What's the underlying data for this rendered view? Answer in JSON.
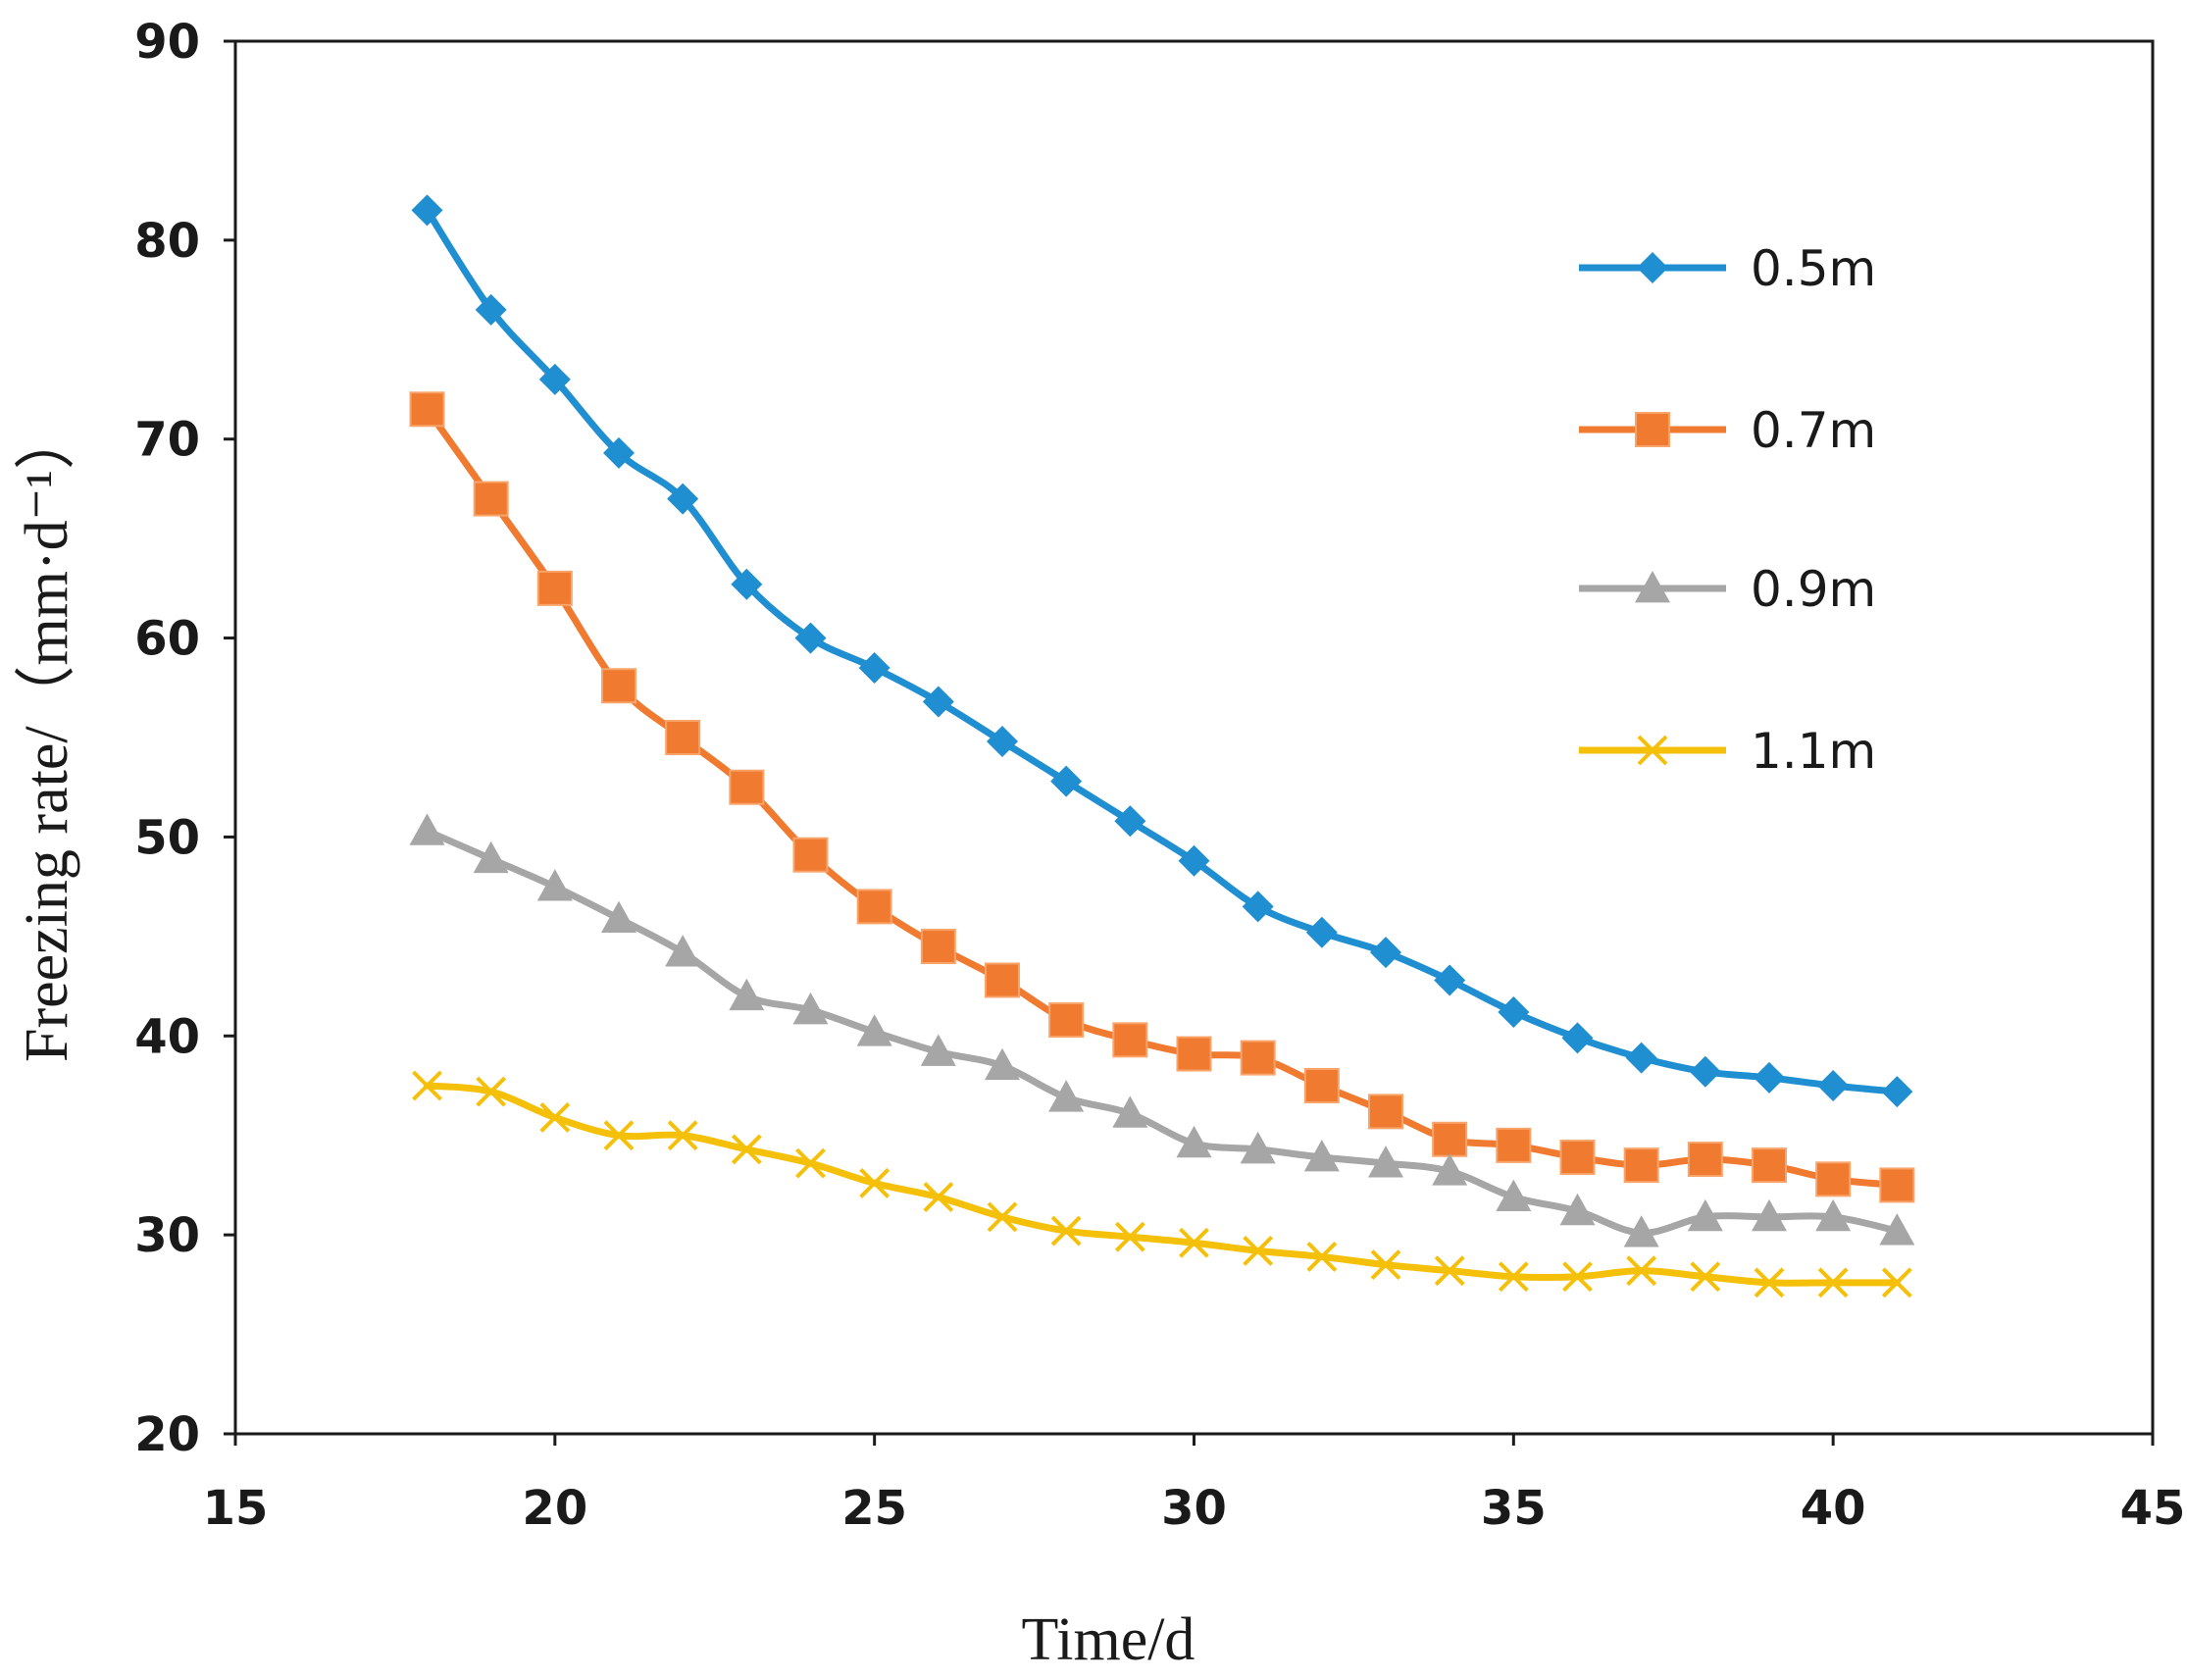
{
  "chart_data": {
    "type": "line",
    "title": "",
    "xlabel": "Time/d",
    "ylabel": "Freezing rate/（mm·d⁻¹）",
    "xlim": [
      15,
      45
    ],
    "ylim": [
      20,
      90
    ],
    "xticks": [
      15,
      20,
      25,
      30,
      35,
      40,
      45
    ],
    "yticks": [
      20,
      30,
      40,
      50,
      60,
      70,
      80,
      90
    ],
    "grid": false,
    "legend_position": "right",
    "x": [
      18,
      19,
      20,
      21,
      22,
      23,
      24,
      25,
      26,
      27,
      28,
      29,
      30,
      31,
      32,
      33,
      34,
      35,
      36,
      37,
      38,
      39,
      40,
      41
    ],
    "series": [
      {
        "name": "0.5m",
        "color": "#1f8fd1",
        "marker": "diamond",
        "values": [
          81.5,
          76.5,
          73,
          69.3,
          67,
          62.7,
          60,
          58.5,
          56.8,
          54.8,
          52.8,
          50.8,
          48.8,
          46.5,
          45.2,
          44.2,
          42.8,
          41.2,
          39.9,
          38.9,
          38.2,
          37.9,
          37.5,
          37.2
        ]
      },
      {
        "name": "0.7m",
        "color": "#ef7a30",
        "marker": "square",
        "values": [
          71.5,
          67,
          62.5,
          57.6,
          55,
          52.5,
          49.1,
          46.5,
          44.5,
          42.8,
          40.8,
          39.8,
          39.1,
          38.9,
          37.5,
          36.2,
          34.8,
          34.5,
          33.9,
          33.5,
          33.8,
          33.5,
          32.8,
          32.5
        ]
      },
      {
        "name": "0.9m",
        "color": "#a6a6a6",
        "marker": "triangle",
        "values": [
          50.3,
          48.9,
          47.5,
          45.9,
          44.2,
          42,
          41.3,
          40.2,
          39.2,
          38.5,
          36.9,
          36.1,
          34.6,
          34.3,
          33.9,
          33.6,
          33.2,
          31.9,
          31.2,
          30.1,
          30.9,
          30.9,
          30.9,
          30.2
        ]
      },
      {
        "name": "1.1m",
        "color": "#f5c00a",
        "marker": "x",
        "values": [
          37.5,
          37.2,
          35.9,
          35,
          35,
          34.3,
          33.6,
          32.6,
          31.9,
          30.9,
          30.2,
          29.9,
          29.6,
          29.2,
          28.9,
          28.5,
          28.2,
          27.9,
          27.9,
          28.2,
          27.9,
          27.6,
          27.6,
          27.6
        ]
      }
    ]
  }
}
